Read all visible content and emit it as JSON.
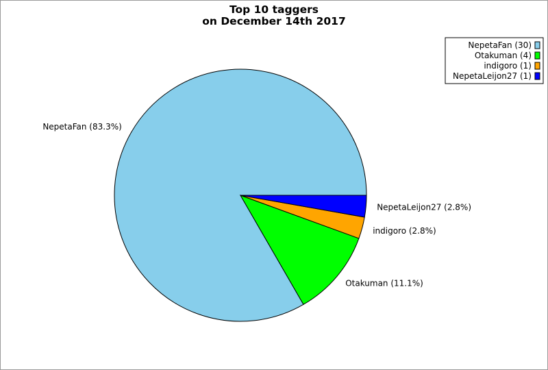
{
  "chart_data": {
    "type": "pie",
    "title": [
      "Top 10 taggers",
      "on December 14th 2017"
    ],
    "slices": [
      {
        "name": "NepetaFan",
        "value": 30,
        "color": "#87ceeb",
        "label": "NepetaFan (83.3%)",
        "legend": "NepetaFan (30)"
      },
      {
        "name": "Otakuman",
        "value": 4,
        "color": "#00ff00",
        "label": "Otakuman (11.1%)",
        "legend": "Otakuman (4)"
      },
      {
        "name": "indigoro",
        "value": 1,
        "color": "#ffa500",
        "label": "indigoro (2.8%)",
        "legend": "indigoro (1)"
      },
      {
        "name": "NepetaLeijon27",
        "value": 1,
        "color": "#0000ff",
        "label": "NepetaLeijon27 (2.8%)",
        "legend": "NepetaLeijon27 (1)"
      }
    ],
    "legend_position": "top-right"
  }
}
